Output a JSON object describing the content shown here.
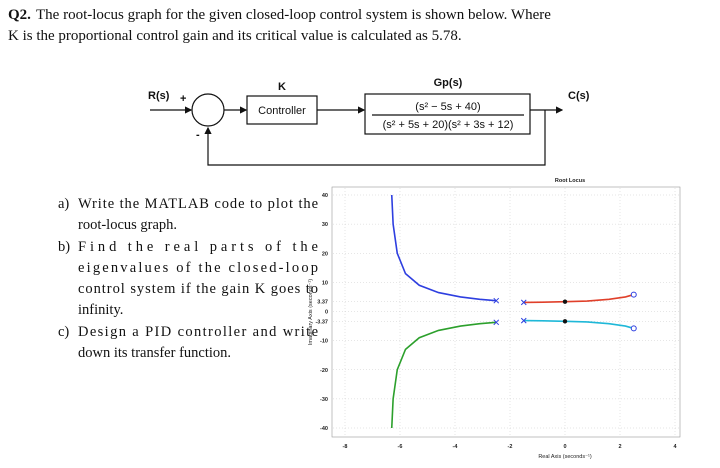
{
  "question": {
    "number": "Q2.",
    "lines": [
      "The root-locus graph for the given closed-loop control system is shown below. Where",
      "K is the proportional control gain and its critical value is calculated as 5.78."
    ]
  },
  "diagram": {
    "input": "R(s)",
    "plus": "+",
    "minus": "-",
    "gain": "K",
    "controller": "Controller",
    "plant": "Gp(s)",
    "numerator": "(s² − 5s + 40)",
    "denominator": "(s² + 5s + 20)(s² + 3s + 12)",
    "output": "C(s)"
  },
  "items": [
    {
      "label": "a)",
      "lines": [
        "Write the MATLAB code to plot the",
        "root-locus graph."
      ]
    },
    {
      "label": "b)",
      "lines": [
        "Find the real parts of the",
        "eigenvalues of the closed-loop",
        "control system if the gain K goes to",
        "infinity."
      ]
    },
    {
      "label": "c)",
      "lines": [
        "Design a PID controller and write",
        "down its transfer function."
      ]
    }
  ],
  "chart_data": {
    "type": "line",
    "title": "Root Locus",
    "xlabel": "Real Axis (seconds⁻¹)",
    "ylabel": "Imaginary Axis (seconds⁻¹)",
    "xlim": [
      -8,
      4
    ],
    "ylim": [
      -40,
      40
    ],
    "xticks": [
      -8,
      -6,
      -4,
      -2,
      0,
      2,
      4
    ],
    "yticks": [
      40,
      30,
      20,
      10,
      3.37,
      0,
      -3.37,
      -10,
      -20,
      -30,
      -40
    ],
    "grid": true,
    "series": [
      {
        "color": "#2e3fe0",
        "x": [
          -6.3,
          -6.25,
          -6.1,
          -5.8,
          -5.3,
          -4.6,
          -3.8,
          -3.1,
          -2.5
        ],
        "y": [
          40,
          30,
          20,
          13,
          9,
          6.5,
          5,
          4.2,
          3.71
        ]
      },
      {
        "color": "#2ca02c",
        "x": [
          -6.3,
          -6.25,
          -6.1,
          -5.8,
          -5.3,
          -4.6,
          -3.8,
          -3.1,
          -2.5
        ],
        "y": [
          -40,
          -30,
          -20,
          -13,
          -9,
          -6.5,
          -5,
          -4.2,
          -3.71
        ]
      },
      {
        "color": "#e0402a",
        "x": [
          -1.5,
          -0.8,
          0,
          0.8,
          1.6,
          2.2,
          2.5
        ],
        "y": [
          3.12,
          3.2,
          3.37,
          3.6,
          4.2,
          5,
          5.81
        ]
      },
      {
        "color": "#1fb8d8",
        "x": [
          -1.5,
          -0.8,
          0,
          0.8,
          1.6,
          2.2,
          2.5
        ],
        "y": [
          -3.12,
          -3.2,
          -3.37,
          -3.6,
          -4.2,
          -5,
          -5.81
        ]
      }
    ],
    "poles": {
      "x": [
        -2.5,
        -2.5,
        -1.5,
        -1.5
      ],
      "y": [
        3.71,
        -3.71,
        3.12,
        -3.12
      ]
    },
    "zeros": {
      "x": [
        2.5,
        2.5
      ],
      "y": [
        5.81,
        -5.81
      ]
    },
    "crossings": {
      "x": [
        0,
        0
      ],
      "y": [
        3.37,
        -3.37
      ]
    }
  }
}
